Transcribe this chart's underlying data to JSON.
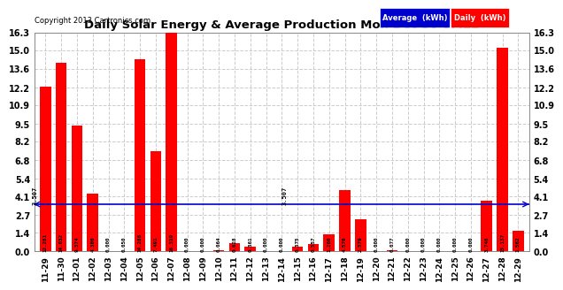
{
  "title": "Daily Solar Energy & Average Production Mon Dec 30 07:22",
  "copyright": "Copyright 2013 Cartronics.com",
  "categories": [
    "11-29",
    "11-30",
    "12-01",
    "12-02",
    "12-03",
    "12-04",
    "12-05",
    "12-06",
    "12-07",
    "12-08",
    "12-09",
    "12-10",
    "12-11",
    "12-12",
    "12-13",
    "12-14",
    "12-15",
    "12-16",
    "12-17",
    "12-18",
    "12-19",
    "12-20",
    "12-21",
    "12-22",
    "12-23",
    "12-24",
    "12-25",
    "12-26",
    "12-27",
    "12-28",
    "12-29"
  ],
  "values": [
    12.281,
    14.032,
    9.374,
    4.3,
    0.0,
    0.05,
    14.286,
    7.491,
    16.319,
    0.0,
    0.0,
    0.064,
    0.628,
    0.361,
    0.0,
    0.0,
    0.375,
    0.557,
    1.28,
    4.576,
    2.379,
    0.0,
    0.077,
    0.0,
    0.0,
    0.0,
    0.0,
    0.0,
    3.748,
    15.137,
    1.562
  ],
  "average": 3.507,
  "bar_color": "#FF0000",
  "average_color": "#0000CC",
  "ylim": [
    0,
    16.3
  ],
  "yticks": [
    0.0,
    1.4,
    2.7,
    4.1,
    5.4,
    6.8,
    8.2,
    9.5,
    10.9,
    12.2,
    13.6,
    15.0,
    16.3
  ],
  "background_color": "#FFFFFF",
  "grid_color": "#CCCCCC",
  "legend_avg_bg": "#0000CC",
  "legend_daily_bg": "#FF0000",
  "legend_text_color": "#FFFFFF"
}
